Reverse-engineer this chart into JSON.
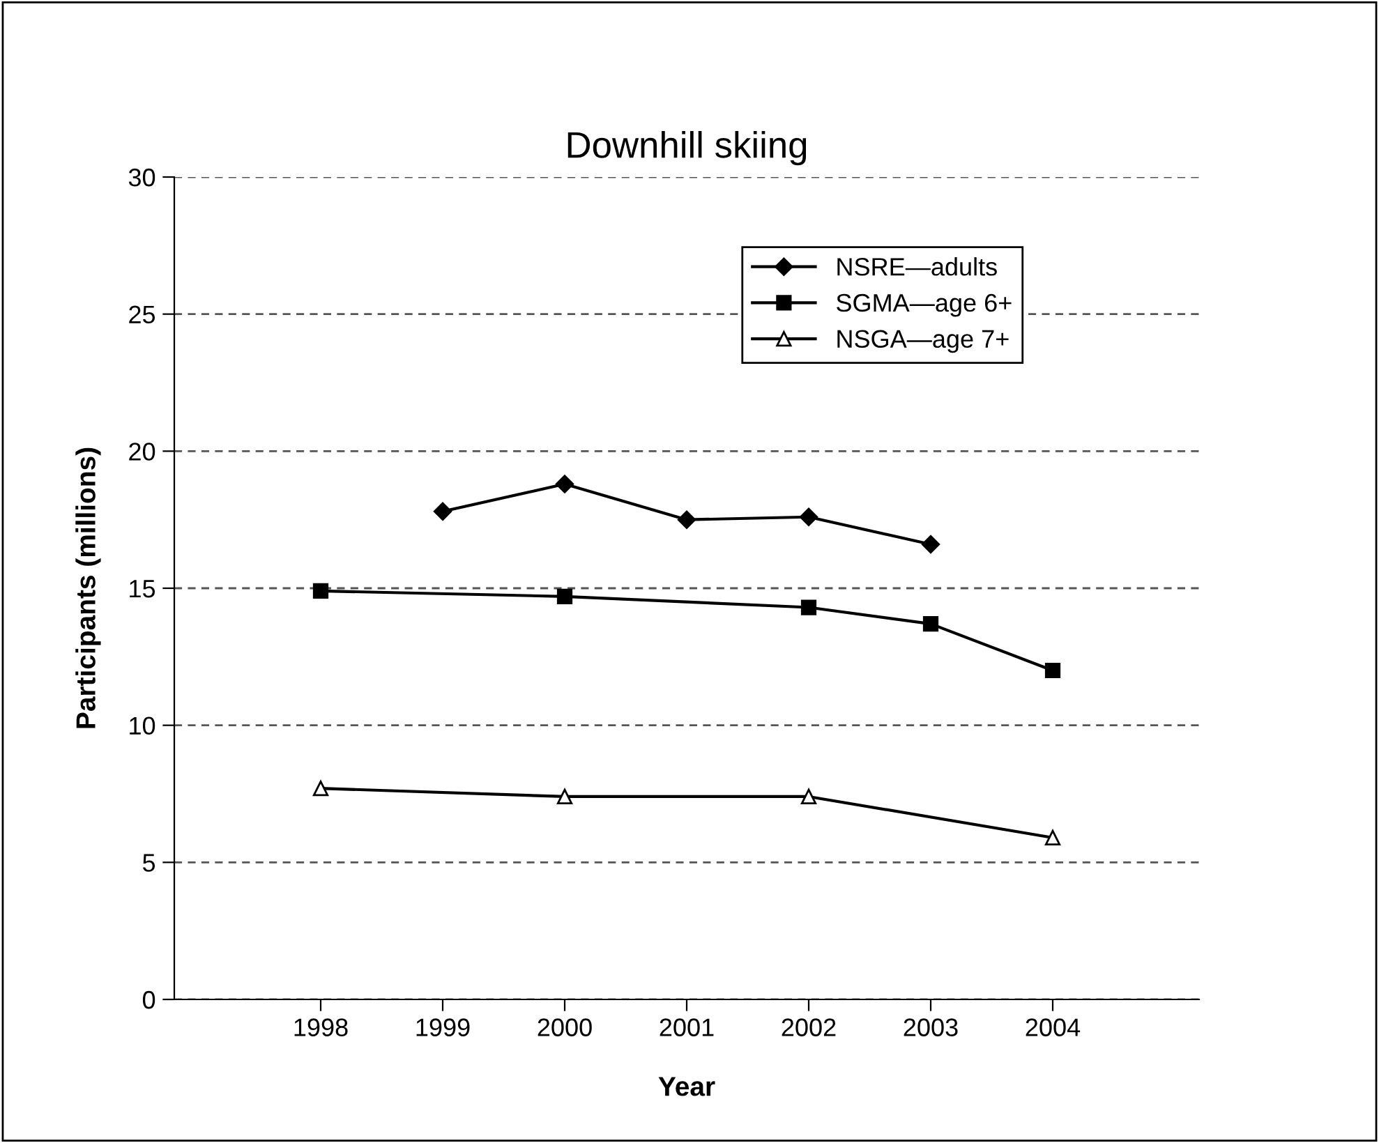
{
  "chart_data": {
    "type": "line",
    "title": "Downhill skiing",
    "xlabel": "Year",
    "ylabel": "Participants (millions)",
    "x": [
      1998,
      1999,
      2000,
      2001,
      2002,
      2003,
      2004
    ],
    "xlim": [
      1996.8,
      2005.2
    ],
    "xticks": [
      1998,
      1999,
      2000,
      2001,
      2002,
      2003,
      2004
    ],
    "ylim": [
      0,
      30
    ],
    "yticks": [
      0,
      5,
      10,
      15,
      20,
      25,
      30
    ],
    "grid": "y",
    "line_style": "solid",
    "legend": "top right",
    "series": [
      {
        "name": "NSRE—adults",
        "color": "#000000",
        "marker": "diamond",
        "values": [
          null,
          17.8,
          18.8,
          17.5,
          17.6,
          16.6,
          null
        ]
      },
      {
        "name": "SGMA—age 6+",
        "color": "#000000",
        "marker": "square",
        "values": [
          14.9,
          null,
          14.7,
          null,
          14.3,
          13.7,
          12.0
        ]
      },
      {
        "name": "NSGA—age 7+",
        "color": "#000000",
        "marker": "triangle",
        "values": [
          7.7,
          null,
          7.4,
          null,
          7.4,
          null,
          5.9
        ]
      }
    ]
  }
}
